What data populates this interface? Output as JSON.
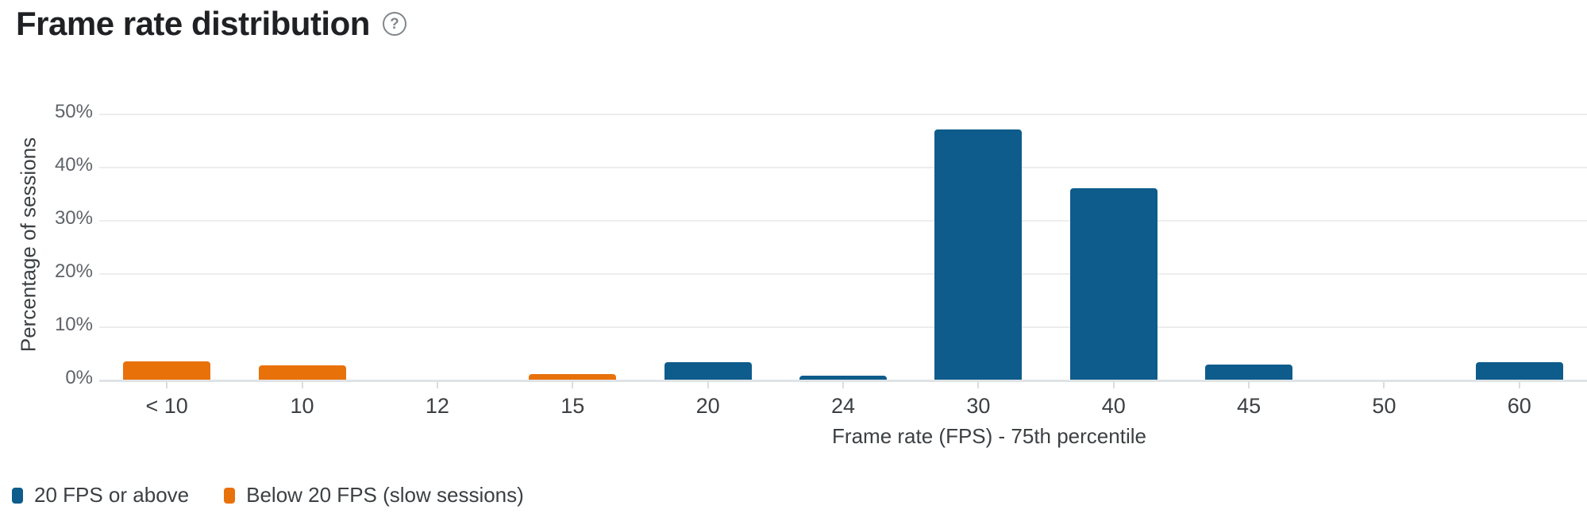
{
  "page": {
    "title": "Frame rate distribution"
  },
  "help": {
    "icon_glyph": "?"
  },
  "chart_data": {
    "type": "bar",
    "title": "Frame rate distribution",
    "xlabel": "Frame rate (FPS) - 75th percentile",
    "ylabel": "Percentage of sessions",
    "ylim": [
      0,
      50
    ],
    "yticks": [
      0,
      10,
      20,
      30,
      40,
      50
    ],
    "ytick_labels": [
      "0%",
      "10%",
      "20%",
      "30%",
      "40%",
      "50%"
    ],
    "grid": "horizontal",
    "legend_position": "bottom-left",
    "categories": [
      "< 10",
      "10",
      "12",
      "15",
      "20",
      "24",
      "30",
      "40",
      "45",
      "50",
      "60"
    ],
    "series": [
      {
        "name": "20 FPS or above",
        "color": "#0e5c8c",
        "values": [
          0,
          0,
          0,
          0,
          3.3,
          0.7,
          47,
          36,
          2.8,
          0,
          3.3
        ]
      },
      {
        "name": "Below 20 FPS (slow sessions)",
        "color": "#e8710a",
        "values": [
          3.5,
          2.7,
          0,
          1,
          0,
          0,
          0,
          0,
          0,
          0,
          0
        ]
      }
    ],
    "style": {
      "grid_color": "#ededed",
      "baseline_color": "#e0e3e6",
      "tick_color": "#dadce0",
      "y_label_color": "#5f6368",
      "x_label_color": "#3c4043",
      "title_color": "#202124"
    }
  }
}
